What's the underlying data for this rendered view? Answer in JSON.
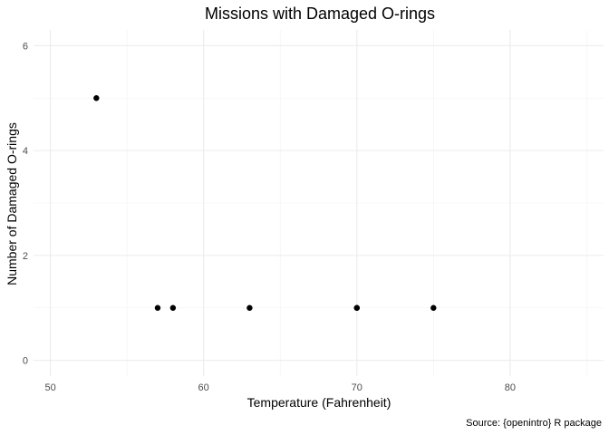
{
  "chart_data": {
    "type": "scatter",
    "title": "Missions with Damaged O-rings",
    "xlabel": "Temperature (Fahrenheit)",
    "ylabel": "Number of Damaged O-rings",
    "caption": "Source: {openintro} R package",
    "xlim": [
      48.9,
      86.1
    ],
    "ylim": [
      -0.3,
      6.3
    ],
    "x_ticks": [
      50,
      60,
      70,
      80
    ],
    "x_tick_labels": [
      "50",
      "60",
      "70",
      "80"
    ],
    "y_ticks": [
      0,
      2,
      4,
      6
    ],
    "y_tick_labels": [
      "0",
      "2",
      "4",
      "6"
    ],
    "grid": true,
    "legend": "none",
    "point_color": "#000000",
    "points": [
      {
        "x": 53,
        "y": 5
      },
      {
        "x": 57,
        "y": 1
      },
      {
        "x": 58,
        "y": 1
      },
      {
        "x": 63,
        "y": 1
      },
      {
        "x": 70,
        "y": 1
      },
      {
        "x": 70,
        "y": 1
      },
      {
        "x": 75,
        "y": 1
      }
    ]
  }
}
